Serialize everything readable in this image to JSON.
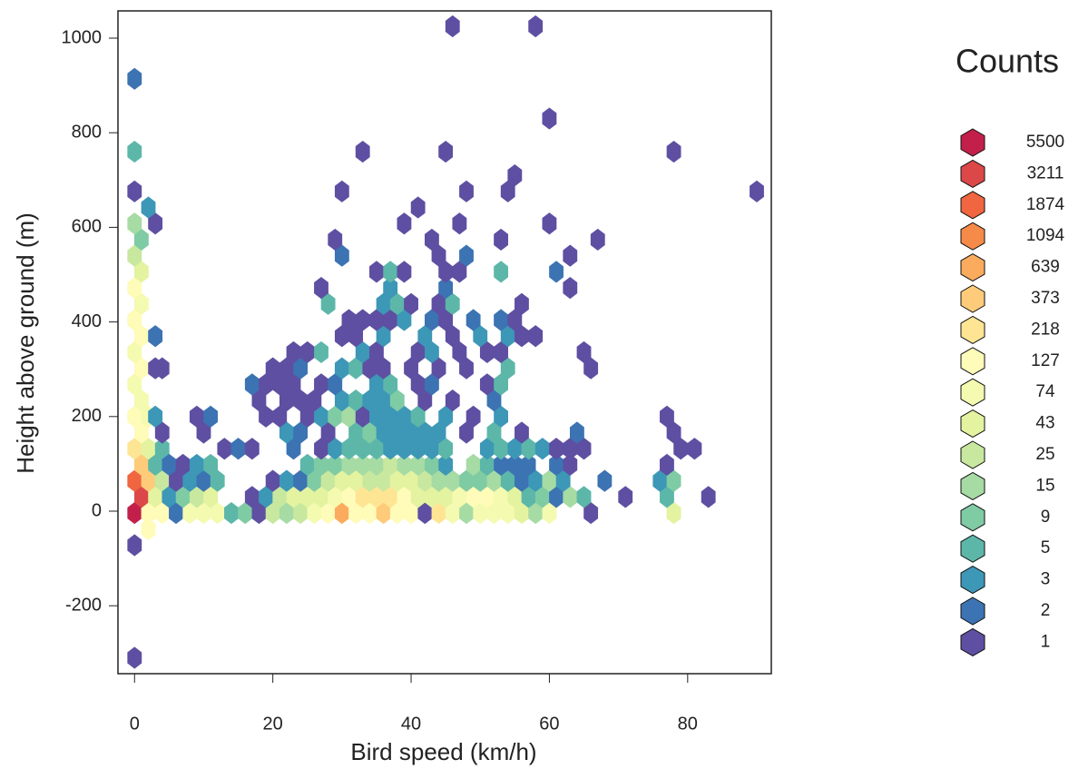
{
  "chart_data": {
    "type": "hexbin",
    "xlabel": "Bird speed (km/h)",
    "ylabel": "Height above ground (m)",
    "xlim": [
      -2.4,
      92.1
    ],
    "ylim": [
      -343.6,
      1057.6
    ],
    "xticks": [
      0,
      20,
      40,
      60,
      80
    ],
    "yticks": [
      -200,
      0,
      200,
      400,
      600,
      800,
      1000
    ],
    "xbin": 2,
    "ybin": 34,
    "legend": {
      "title": "Counts",
      "levels": [
        5500,
        3211,
        1874,
        1094,
        639,
        373,
        218,
        127,
        74,
        43,
        25,
        15,
        9,
        5,
        3,
        2,
        1
      ],
      "colors": [
        "#c2204a",
        "#dc4848",
        "#ef6640",
        "#f68a48",
        "#fbab5e",
        "#fdcb7a",
        "#fee594",
        "#fffbb8",
        "#f4fab0",
        "#e3f3a0",
        "#c7e89e",
        "#a6dba4",
        "#7fcba4",
        "#5cb7a9",
        "#3d97b7",
        "#3c73b3",
        "#5e4fa2"
      ]
    },
    "points": [
      [
        0,
        -310,
        1
      ],
      [
        0,
        -72,
        1
      ],
      [
        2,
        -38,
        127
      ],
      [
        0,
        -4,
        5500
      ],
      [
        2,
        -4,
        127
      ],
      [
        1,
        30,
        3211
      ],
      [
        3,
        30,
        43
      ],
      [
        0,
        64,
        1874
      ],
      [
        2,
        64,
        373
      ],
      [
        4,
        64,
        25
      ],
      [
        1,
        98,
        373
      ],
      [
        3,
        98,
        5
      ],
      [
        0,
        132,
        218
      ],
      [
        2,
        132,
        43
      ],
      [
        4,
        132,
        5
      ],
      [
        1,
        166,
        127
      ],
      [
        0,
        200,
        127
      ],
      [
        2,
        200,
        74
      ],
      [
        1,
        234,
        74
      ],
      [
        0,
        268,
        74
      ],
      [
        1,
        302,
        127
      ],
      [
        4,
        302,
        1
      ],
      [
        0,
        336,
        74
      ],
      [
        1,
        370,
        127
      ],
      [
        3,
        370,
        2
      ],
      [
        0,
        404,
        127
      ],
      [
        1,
        438,
        74
      ],
      [
        0,
        472,
        127
      ],
      [
        1,
        506,
        43
      ],
      [
        0,
        540,
        25
      ],
      [
        1,
        574,
        9
      ],
      [
        0,
        608,
        15
      ],
      [
        3,
        608,
        1
      ],
      [
        2,
        642,
        3
      ],
      [
        0,
        676,
        1
      ],
      [
        0,
        760,
        5
      ],
      [
        0,
        914,
        2
      ],
      [
        4,
        -4,
        127
      ],
      [
        6,
        -4,
        2
      ],
      [
        8,
        -4,
        74
      ],
      [
        10,
        -4,
        74
      ],
      [
        12,
        -4,
        74
      ],
      [
        14,
        -4,
        5
      ],
      [
        16,
        -4,
        9
      ],
      [
        18,
        -4,
        1
      ],
      [
        20,
        -4,
        25
      ],
      [
        22,
        -4,
        15
      ],
      [
        24,
        -4,
        25
      ],
      [
        26,
        -4,
        74
      ],
      [
        28,
        -4,
        127
      ],
      [
        30,
        -4,
        639
      ],
      [
        32,
        -4,
        127
      ],
      [
        34,
        -4,
        127
      ],
      [
        36,
        -4,
        373
      ],
      [
        38,
        -4,
        127
      ],
      [
        40,
        -4,
        127
      ],
      [
        42,
        -4,
        1
      ],
      [
        44,
        -4,
        218
      ],
      [
        46,
        -4,
        74
      ],
      [
        48,
        -4,
        15
      ],
      [
        50,
        -4,
        74
      ],
      [
        52,
        -4,
        74
      ],
      [
        54,
        -4,
        74
      ],
      [
        56,
        -4,
        43
      ],
      [
        58,
        -4,
        15
      ],
      [
        60,
        -4,
        74
      ],
      [
        66,
        -4,
        1
      ],
      [
        78,
        -4,
        43
      ],
      [
        5,
        30,
        3
      ],
      [
        7,
        30,
        9
      ],
      [
        9,
        30,
        25
      ],
      [
        11,
        30,
        43
      ],
      [
        17,
        30,
        1
      ],
      [
        19,
        30,
        3
      ],
      [
        21,
        30,
        25
      ],
      [
        23,
        30,
        43
      ],
      [
        25,
        30,
        43
      ],
      [
        27,
        30,
        43
      ],
      [
        29,
        30,
        74
      ],
      [
        31,
        30,
        127
      ],
      [
        33,
        30,
        218
      ],
      [
        35,
        30,
        218
      ],
      [
        37,
        30,
        218
      ],
      [
        39,
        30,
        127
      ],
      [
        41,
        30,
        43
      ],
      [
        43,
        30,
        43
      ],
      [
        45,
        30,
        43
      ],
      [
        47,
        30,
        74
      ],
      [
        49,
        30,
        127
      ],
      [
        51,
        30,
        127
      ],
      [
        53,
        30,
        74
      ],
      [
        55,
        30,
        43
      ],
      [
        57,
        30,
        5
      ],
      [
        59,
        30,
        9
      ],
      [
        61,
        30,
        2
      ],
      [
        63,
        30,
        15
      ],
      [
        65,
        30,
        5
      ],
      [
        71,
        30,
        1
      ],
      [
        77,
        30,
        5
      ],
      [
        83,
        30,
        1
      ],
      [
        6,
        64,
        1
      ],
      [
        8,
        64,
        3
      ],
      [
        10,
        64,
        2
      ],
      [
        12,
        64,
        5
      ],
      [
        20,
        64,
        1
      ],
      [
        22,
        64,
        3
      ],
      [
        24,
        64,
        2
      ],
      [
        26,
        64,
        9
      ],
      [
        28,
        64,
        25
      ],
      [
        30,
        64,
        43
      ],
      [
        32,
        64,
        43
      ],
      [
        34,
        64,
        25
      ],
      [
        36,
        64,
        25
      ],
      [
        38,
        64,
        43
      ],
      [
        40,
        64,
        43
      ],
      [
        42,
        64,
        25
      ],
      [
        44,
        64,
        15
      ],
      [
        46,
        64,
        15
      ],
      [
        48,
        64,
        9
      ],
      [
        50,
        64,
        9
      ],
      [
        52,
        64,
        15
      ],
      [
        54,
        64,
        5
      ],
      [
        56,
        64,
        2
      ],
      [
        58,
        64,
        3
      ],
      [
        60,
        64,
        15
      ],
      [
        62,
        64,
        3
      ],
      [
        68,
        64,
        2
      ],
      [
        76,
        64,
        3
      ],
      [
        78,
        64,
        9
      ],
      [
        5,
        98,
        2
      ],
      [
        7,
        98,
        1
      ],
      [
        9,
        98,
        3
      ],
      [
        11,
        98,
        5
      ],
      [
        25,
        98,
        5
      ],
      [
        27,
        98,
        9
      ],
      [
        29,
        98,
        9
      ],
      [
        31,
        98,
        15
      ],
      [
        33,
        98,
        15
      ],
      [
        35,
        98,
        15
      ],
      [
        37,
        98,
        25
      ],
      [
        39,
        98,
        15
      ],
      [
        41,
        98,
        15
      ],
      [
        43,
        98,
        9
      ],
      [
        45,
        98,
        3
      ],
      [
        49,
        98,
        15
      ],
      [
        51,
        98,
        5
      ],
      [
        53,
        98,
        2
      ],
      [
        55,
        98,
        2
      ],
      [
        57,
        98,
        2
      ],
      [
        61,
        98,
        2
      ],
      [
        63,
        98,
        1
      ],
      [
        77,
        98,
        1
      ],
      [
        13,
        132,
        1
      ],
      [
        15,
        132,
        2
      ],
      [
        17,
        132,
        1
      ],
      [
        23,
        132,
        2
      ],
      [
        27,
        132,
        1
      ],
      [
        29,
        132,
        3
      ],
      [
        31,
        132,
        5
      ],
      [
        33,
        132,
        5
      ],
      [
        35,
        132,
        5
      ],
      [
        37,
        132,
        3
      ],
      [
        39,
        132,
        3
      ],
      [
        41,
        132,
        3
      ],
      [
        43,
        132,
        3
      ],
      [
        45,
        132,
        5
      ],
      [
        51,
        132,
        3
      ],
      [
        53,
        132,
        5
      ],
      [
        55,
        132,
        3
      ],
      [
        57,
        132,
        5
      ],
      [
        59,
        132,
        3
      ],
      [
        61,
        132,
        1
      ],
      [
        63,
        132,
        1
      ],
      [
        65,
        132,
        1
      ],
      [
        79,
        132,
        1
      ],
      [
        81,
        132,
        1
      ],
      [
        4,
        166,
        1
      ],
      [
        10,
        166,
        1
      ],
      [
        22,
        166,
        3
      ],
      [
        24,
        166,
        2
      ],
      [
        28,
        166,
        1
      ],
      [
        32,
        166,
        5
      ],
      [
        34,
        166,
        9
      ],
      [
        36,
        166,
        3
      ],
      [
        38,
        166,
        3
      ],
      [
        40,
        166,
        3
      ],
      [
        42,
        166,
        3
      ],
      [
        44,
        166,
        3
      ],
      [
        48,
        166,
        1
      ],
      [
        52,
        166,
        5
      ],
      [
        56,
        166,
        1
      ],
      [
        64,
        166,
        2
      ],
      [
        78,
        166,
        1
      ],
      [
        3,
        200,
        3
      ],
      [
        9,
        200,
        1
      ],
      [
        11,
        200,
        2
      ],
      [
        19,
        200,
        1
      ],
      [
        21,
        200,
        1
      ],
      [
        25,
        200,
        1
      ],
      [
        27,
        200,
        3
      ],
      [
        29,
        200,
        9
      ],
      [
        31,
        200,
        15
      ],
      [
        33,
        200,
        1
      ],
      [
        35,
        200,
        3
      ],
      [
        37,
        200,
        3
      ],
      [
        39,
        200,
        3
      ],
      [
        41,
        200,
        5
      ],
      [
        45,
        200,
        3
      ],
      [
        49,
        200,
        1
      ],
      [
        53,
        200,
        3
      ],
      [
        77,
        200,
        1
      ],
      [
        18,
        234,
        1
      ],
      [
        22,
        234,
        1
      ],
      [
        24,
        234,
        1
      ],
      [
        26,
        234,
        1
      ],
      [
        30,
        234,
        3
      ],
      [
        32,
        234,
        5
      ],
      [
        34,
        234,
        3
      ],
      [
        36,
        234,
        3
      ],
      [
        38,
        234,
        9
      ],
      [
        42,
        234,
        1
      ],
      [
        46,
        234,
        1
      ],
      [
        52,
        234,
        2
      ],
      [
        17,
        268,
        2
      ],
      [
        19,
        268,
        1
      ],
      [
        21,
        268,
        1
      ],
      [
        23,
        268,
        1
      ],
      [
        27,
        268,
        1
      ],
      [
        29,
        268,
        2
      ],
      [
        35,
        268,
        3
      ],
      [
        37,
        268,
        5
      ],
      [
        41,
        268,
        1
      ],
      [
        43,
        268,
        2
      ],
      [
        51,
        268,
        1
      ],
      [
        53,
        268,
        5
      ],
      [
        3,
        302,
        1
      ],
      [
        20,
        302,
        1
      ],
      [
        22,
        302,
        1
      ],
      [
        24,
        302,
        2
      ],
      [
        30,
        302,
        3
      ],
      [
        32,
        302,
        5
      ],
      [
        34,
        302,
        1
      ],
      [
        36,
        302,
        1
      ],
      [
        40,
        302,
        1
      ],
      [
        44,
        302,
        1
      ],
      [
        48,
        302,
        1
      ],
      [
        54,
        302,
        5
      ],
      [
        66,
        302,
        1
      ],
      [
        23,
        336,
        1
      ],
      [
        25,
        336,
        1
      ],
      [
        27,
        336,
        5
      ],
      [
        33,
        336,
        3
      ],
      [
        35,
        336,
        1
      ],
      [
        41,
        336,
        1
      ],
      [
        43,
        336,
        3
      ],
      [
        47,
        336,
        1
      ],
      [
        51,
        336,
        1
      ],
      [
        53,
        336,
        1
      ],
      [
        65,
        336,
        1
      ],
      [
        30,
        370,
        1
      ],
      [
        32,
        370,
        1
      ],
      [
        36,
        370,
        3
      ],
      [
        42,
        370,
        3
      ],
      [
        46,
        370,
        1
      ],
      [
        50,
        370,
        3
      ],
      [
        54,
        370,
        3
      ],
      [
        56,
        370,
        1
      ],
      [
        58,
        370,
        1
      ],
      [
        31,
        404,
        1
      ],
      [
        33,
        404,
        1
      ],
      [
        35,
        404,
        1
      ],
      [
        37,
        404,
        1
      ],
      [
        39,
        404,
        3
      ],
      [
        43,
        404,
        2
      ],
      [
        45,
        404,
        1
      ],
      [
        49,
        404,
        2
      ],
      [
        53,
        404,
        2
      ],
      [
        55,
        404,
        1
      ],
      [
        28,
        438,
        5
      ],
      [
        36,
        438,
        3
      ],
      [
        38,
        438,
        5
      ],
      [
        40,
        438,
        1
      ],
      [
        44,
        438,
        1
      ],
      [
        46,
        438,
        5
      ],
      [
        56,
        438,
        1
      ],
      [
        27,
        472,
        1
      ],
      [
        37,
        472,
        3
      ],
      [
        45,
        472,
        2
      ],
      [
        63,
        472,
        1
      ],
      [
        35,
        506,
        1
      ],
      [
        37,
        506,
        5
      ],
      [
        39,
        506,
        1
      ],
      [
        45,
        506,
        1
      ],
      [
        47,
        506,
        1
      ],
      [
        53,
        506,
        5
      ],
      [
        61,
        506,
        2
      ],
      [
        30,
        540,
        2
      ],
      [
        44,
        540,
        1
      ],
      [
        48,
        540,
        2
      ],
      [
        63,
        540,
        1
      ],
      [
        29,
        574,
        1
      ],
      [
        43,
        574,
        1
      ],
      [
        53,
        574,
        1
      ],
      [
        67,
        574,
        1
      ],
      [
        39,
        608,
        1
      ],
      [
        47,
        608,
        1
      ],
      [
        60,
        608,
        1
      ],
      [
        41,
        642,
        1
      ],
      [
        30,
        676,
        1
      ],
      [
        48,
        676,
        1
      ],
      [
        54,
        676,
        1
      ],
      [
        90,
        676,
        1
      ],
      [
        55,
        710,
        1
      ],
      [
        33,
        760,
        1
      ],
      [
        45,
        760,
        1
      ],
      [
        78,
        760,
        1
      ],
      [
        60,
        830,
        1
      ],
      [
        46,
        1025,
        1
      ],
      [
        58,
        1025,
        1
      ]
    ]
  }
}
